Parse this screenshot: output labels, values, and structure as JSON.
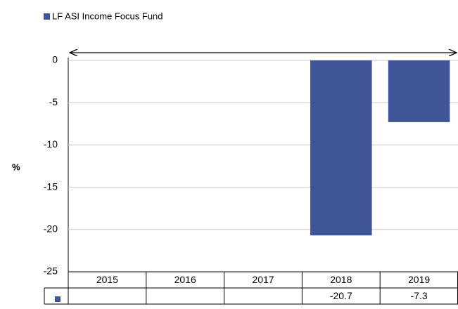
{
  "chart_data": {
    "type": "bar",
    "legend": "LF ASI Income Focus Fund",
    "ylabel": "%",
    "categories": [
      "2015",
      "2016",
      "2017",
      "2018",
      "2019"
    ],
    "values": [
      null,
      null,
      null,
      -20.7,
      -7.3
    ],
    "color": "#3f5597",
    "ylim": [
      -25,
      0
    ],
    "yticks": [
      0,
      -5,
      -10,
      -15,
      -20,
      -25
    ],
    "grid": true
  }
}
